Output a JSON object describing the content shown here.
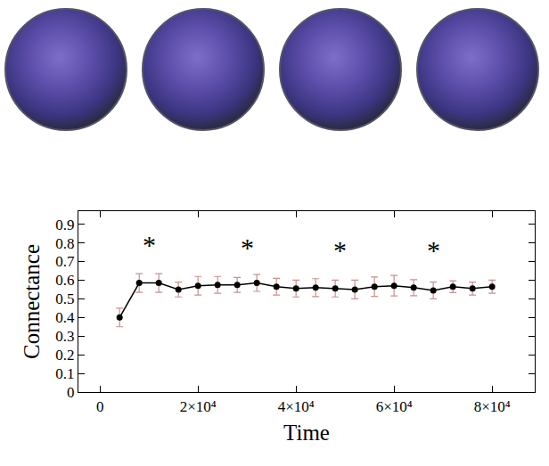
{
  "chart_data": {
    "type": "line",
    "x_label": "Time",
    "y_label": "Connectance",
    "x": [
      4000,
      8000,
      12000,
      16000,
      20000,
      24000,
      28000,
      32000,
      36000,
      40000,
      44000,
      48000,
      52000,
      56000,
      60000,
      64000,
      68000,
      72000,
      76000,
      80000
    ],
    "values": [
      0.4,
      0.585,
      0.585,
      0.55,
      0.57,
      0.575,
      0.575,
      0.585,
      0.565,
      0.555,
      0.56,
      0.555,
      0.55,
      0.565,
      0.57,
      0.56,
      0.545,
      0.565,
      0.555,
      0.565
    ],
    "errors": [
      0.05,
      0.05,
      0.05,
      0.04,
      0.05,
      0.045,
      0.04,
      0.045,
      0.045,
      0.045,
      0.048,
      0.045,
      0.05,
      0.052,
      0.055,
      0.043,
      0.045,
      0.032,
      0.035,
      0.035
    ],
    "xlim": [
      -4400,
      88700
    ],
    "xticks": [
      0,
      {
        "value": 20000,
        "label": "2×10⁴"
      },
      {
        "value": 40000,
        "label": "4×10⁴"
      },
      {
        "value": 60000,
        "label": "6×10⁴"
      },
      {
        "value": 80000,
        "label": "8×10⁴"
      }
    ],
    "ylim": [
      0,
      0.97
    ],
    "yticks": [
      0,
      0.1,
      0.2,
      0.3,
      0.4,
      0.5,
      0.6,
      0.7,
      0.8,
      0.9
    ],
    "grid": false,
    "color": "#000000",
    "marker": "circle",
    "line_style": "solid",
    "annotations": [
      {
        "x": 10000,
        "y": 0.79,
        "text": "*"
      },
      {
        "x": 30000,
        "y": 0.775,
        "text": "*"
      },
      {
        "x": 49000,
        "y": 0.76,
        "text": "*"
      },
      {
        "x": 68000,
        "y": 0.76,
        "text": "*"
      }
    ]
  }
}
